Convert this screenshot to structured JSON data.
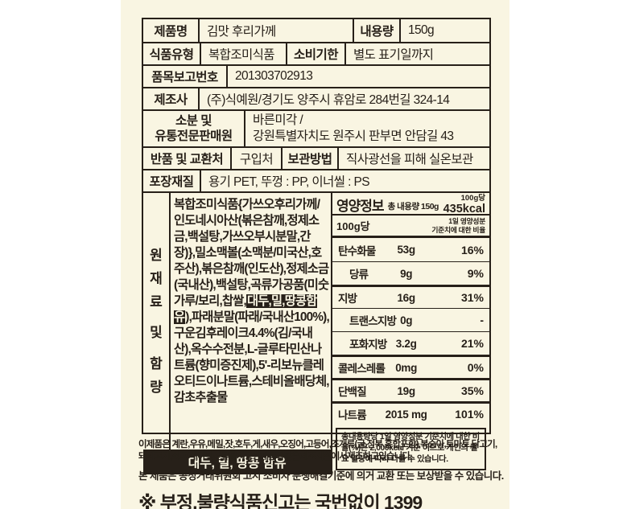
{
  "colors": {
    "sheet_background": "#f9f5e2",
    "ink": "#272019",
    "highlight_bg": "#272019",
    "highlight_text": "#f9f5e2"
  },
  "product_table": {
    "product_name_label": "제품명",
    "product_name": "김맛 후리가께",
    "net_weight_label": "내용량",
    "net_weight": "150g",
    "food_type_label": "식품유형",
    "food_type": "복합조미식품",
    "expiry_label": "소비기한",
    "expiry": "별도 표기일까지",
    "report_no_label": "품목보고번호",
    "report_no": "201303702913",
    "manufacturer_label": "제조사",
    "manufacturer": "(주)식예원/경기도 양주시 휴암로 284번길 324-14",
    "distributor_label_line1": "소분 및",
    "distributor_label_line2": "유통전문판매원",
    "distributor_line1": "바른미각 /",
    "distributor_line2": "강원특별자치도 원주시 판부면 안담길 43",
    "return_label": "반품 및 교환처",
    "return_value": "구입처",
    "storage_label": "보관방법",
    "storage_value": "직사광선을 피해 실온보관",
    "packaging_label": "포장재질",
    "packaging_value": "용기 PET, 뚜껑 : PP, 이너씰 : PS"
  },
  "ingredients": {
    "col_chars": [
      "원",
      "재",
      "료",
      "및",
      "함",
      "량"
    ],
    "text_before": "복합조미식품{가쓰오후리가께/인도네시아산(볶은참깨,정제소금,백설탕,가쓰오부시분말,간장)},밀소맥볼(소맥분/미국산,호주산),볶은참깨(인도산),정제소금(국내산),백설탕,곡류가공품(미숫가루/보리,찹쌀,",
    "allergen_inline": "대두,밀,땅콩함유",
    "text_after": "),파래분말(파래/국내산100%),구운김후레이크4.4%(김/국내산),옥수수전분,L-글루타민산나트륨(향미증진제),5'-리보뉴클레오티드이나트륨,스테비올배당체,감초추출물",
    "allergen_bar": "대두, 밀, 땅콩 함유"
  },
  "nutrition": {
    "title": "영양정보",
    "total_label": "총 내용량 150g",
    "per_label": "100g당",
    "kcal": "435kcal",
    "per_row_label": "100g당",
    "daily_note_line1": "1일 영양성분",
    "daily_note_line2": "기준치에 대한 비율",
    "rows": [
      {
        "label": "탄수화물",
        "amount": "53g",
        "dv": "16%"
      },
      {
        "label": "당류",
        "amount": "9g",
        "dv": "9%"
      },
      {
        "label": "지방",
        "amount": "16g",
        "dv": "31%"
      },
      {
        "label": "트랜스지방",
        "amount": "0g",
        "dv": "-"
      },
      {
        "label": "포화지방",
        "amount": "3.2g",
        "dv": "21%"
      },
      {
        "label": "콜레스레롤",
        "amount": "0mg",
        "dv": "0%"
      },
      {
        "label": "단백질",
        "amount": "19g",
        "dv": "35%"
      },
      {
        "label": "나트륨",
        "amount": "2015 mg",
        "dv": "101%"
      }
    ],
    "footnote": "총내용량당 1일 영양성분 기준치에 대한 비율(%)은 2,000kcal 기준 이므로 개인의 필요 열량에 따라 다를 수 있습니다."
  },
  "footer": {
    "allergy_line1": "이제품은 계란,우유,메밀,잣,호두,게,새우,오징어,고등어,조개류(굴,전복,홍합포함),복숭아,토마토,닭고기,",
    "allergy_line2": "돼지고기,쇠고기,아황산류를사용한제품과같은제조시설에서제조하고있습니다.",
    "exchange_line": "본 제품은 공정거래위원회 고시 소비자 분쟁해결기준에 의거 교환 또는 보상받을 수 있습니다.",
    "report_line": "※ 부정,불량식품신고는 국번없이 1399"
  }
}
